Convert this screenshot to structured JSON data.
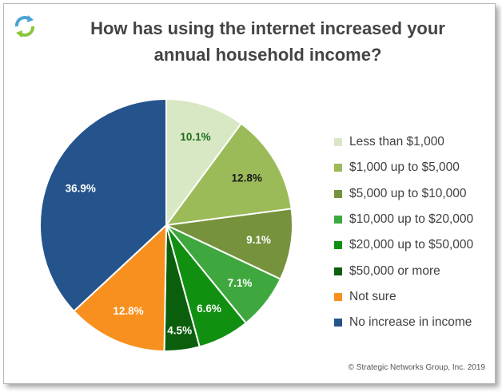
{
  "chart_data": {
    "type": "pie",
    "title": "How has using the internet increased your annual household income?",
    "title_lines": [
      "How has using the internet increased your",
      "annual household income?"
    ],
    "slices": [
      {
        "label": "Less than $1,000",
        "value": 10.1,
        "value_label": "10.1%",
        "color": "#d9e8c4",
        "label_color": "#1e6b1e"
      },
      {
        "label": "$1,000 up to $5,000",
        "value": 12.8,
        "value_label": "12.8%",
        "color": "#9bbb59",
        "label_color": "#1a1a1a"
      },
      {
        "label": "$5,000 up to $10,000",
        "value": 9.1,
        "value_label": "9.1%",
        "color": "#76923c",
        "label_color": "#ffffff"
      },
      {
        "label": "$10,000 up to $20,000",
        "value": 7.1,
        "value_label": "7.1%",
        "color": "#3ea83e",
        "label_color": "#ffffff"
      },
      {
        "label": "$20,000 up to $50,000",
        "value": 6.6,
        "value_label": "6.6%",
        "color": "#118f11",
        "label_color": "#ffffff"
      },
      {
        "label": "$50,000 or more",
        "value": 4.5,
        "value_label": "4.5%",
        "color": "#0b5e0b",
        "label_color": "#ffffff"
      },
      {
        "label": "Not sure",
        "value": 12.8,
        "value_label": "12.8%",
        "color": "#f7901e",
        "label_color": "#ffffff"
      },
      {
        "label": "No increase in income",
        "value": 36.9,
        "value_label": "36.9%",
        "color": "#25548c",
        "label_color": "#ffffff"
      }
    ],
    "legend_position": "right"
  },
  "footer": {
    "copyright": "© Strategic Networks Group, Inc. 2019"
  },
  "logo": {
    "icon": "recycle-arrows-icon",
    "colors": [
      "#4aa3d8",
      "#8cc63f"
    ]
  }
}
